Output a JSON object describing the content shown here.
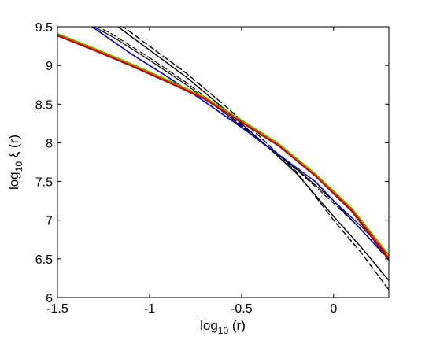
{
  "chart_data": {
    "type": "line",
    "title": "",
    "xlabel": {
      "base": "log",
      "sub": "10",
      "rest": " (r)"
    },
    "ylabel": {
      "base": "log",
      "sub": "10",
      "rest": " ξ (r)"
    },
    "xlim": [
      -1.5,
      0.3
    ],
    "ylim": [
      6,
      9.5
    ],
    "xticks": [
      -1.5,
      -1,
      -0.5,
      0
    ],
    "xtick_labels": [
      "-1.5",
      "-1",
      "-0.5",
      "0"
    ],
    "yticks": [
      6,
      6.5,
      7,
      7.5,
      8,
      8.5,
      9,
      9.5
    ],
    "ytick_labels": [
      "6",
      "6.5",
      "7",
      "7.5",
      "8",
      "8.5",
      "9",
      "9.5"
    ],
    "grid": false,
    "legend": "none",
    "series": [
      {
        "color": "#000000",
        "style": "dashed",
        "width": 1.4,
        "x": [
          -1.5,
          -1.2,
          -1.0,
          -0.8,
          -0.6,
          -0.4,
          -0.2,
          0.0,
          0.15,
          0.3
        ],
        "y": [
          10.1,
          9.6,
          9.25,
          8.9,
          8.5,
          8.08,
          7.62,
          7.0,
          6.58,
          6.1
        ]
      },
      {
        "color": "#000000",
        "style": "solid",
        "width": 1.4,
        "x": [
          -1.5,
          -1.2,
          -1.0,
          -0.8,
          -0.6,
          -0.4,
          -0.2,
          0.0,
          0.15,
          0.3
        ],
        "y": [
          10.0,
          9.55,
          9.2,
          8.85,
          8.45,
          8.04,
          7.6,
          7.05,
          6.65,
          6.22
        ]
      },
      {
        "color": "#000000",
        "style": "dashed",
        "width": 1.2,
        "x": [
          -1.5,
          -1.2,
          -1.0,
          -0.8,
          -0.6,
          -0.4,
          -0.2,
          0.0,
          0.15,
          0.3
        ],
        "y": [
          9.78,
          9.4,
          9.1,
          8.78,
          8.42,
          8.03,
          7.65,
          7.22,
          6.88,
          6.48
        ]
      },
      {
        "color": "#000000",
        "style": "solid",
        "width": 1.2,
        "x": [
          -1.5,
          -1.2,
          -1.0,
          -0.8,
          -0.6,
          -0.4,
          -0.2,
          0.0,
          0.15,
          0.3
        ],
        "y": [
          9.75,
          9.37,
          9.07,
          8.75,
          8.4,
          8.02,
          7.66,
          7.25,
          6.92,
          6.55
        ]
      },
      {
        "color": "#0000cc",
        "style": "solid",
        "width": 1.6,
        "x": [
          -1.5,
          -1.3,
          -1.1,
          -0.9,
          -0.7,
          -0.5,
          -0.3,
          -0.1,
          0.1,
          0.3
        ],
        "y": [
          9.78,
          9.48,
          9.15,
          8.85,
          8.53,
          8.2,
          7.85,
          7.5,
          7.0,
          6.5
        ]
      },
      {
        "color": "#cc0000",
        "style": "solid",
        "width": 3,
        "x": [
          -1.5,
          -1.3,
          -1.1,
          -0.9,
          -0.7,
          -0.5,
          -0.3,
          -0.1,
          0.1,
          0.3
        ],
        "y": [
          9.39,
          9.2,
          9.0,
          8.79,
          8.57,
          8.27,
          7.97,
          7.58,
          7.12,
          6.5
        ]
      },
      {
        "color": "#66aa00",
        "style": "solid",
        "width": 2,
        "x": [
          -1.5,
          -1.3,
          -1.1,
          -0.9,
          -0.7,
          -0.5,
          -0.3,
          -0.1,
          0.1,
          0.3
        ],
        "y": [
          9.41,
          9.22,
          9.02,
          8.81,
          8.59,
          8.29,
          7.99,
          7.6,
          7.15,
          6.55
        ]
      }
    ]
  }
}
